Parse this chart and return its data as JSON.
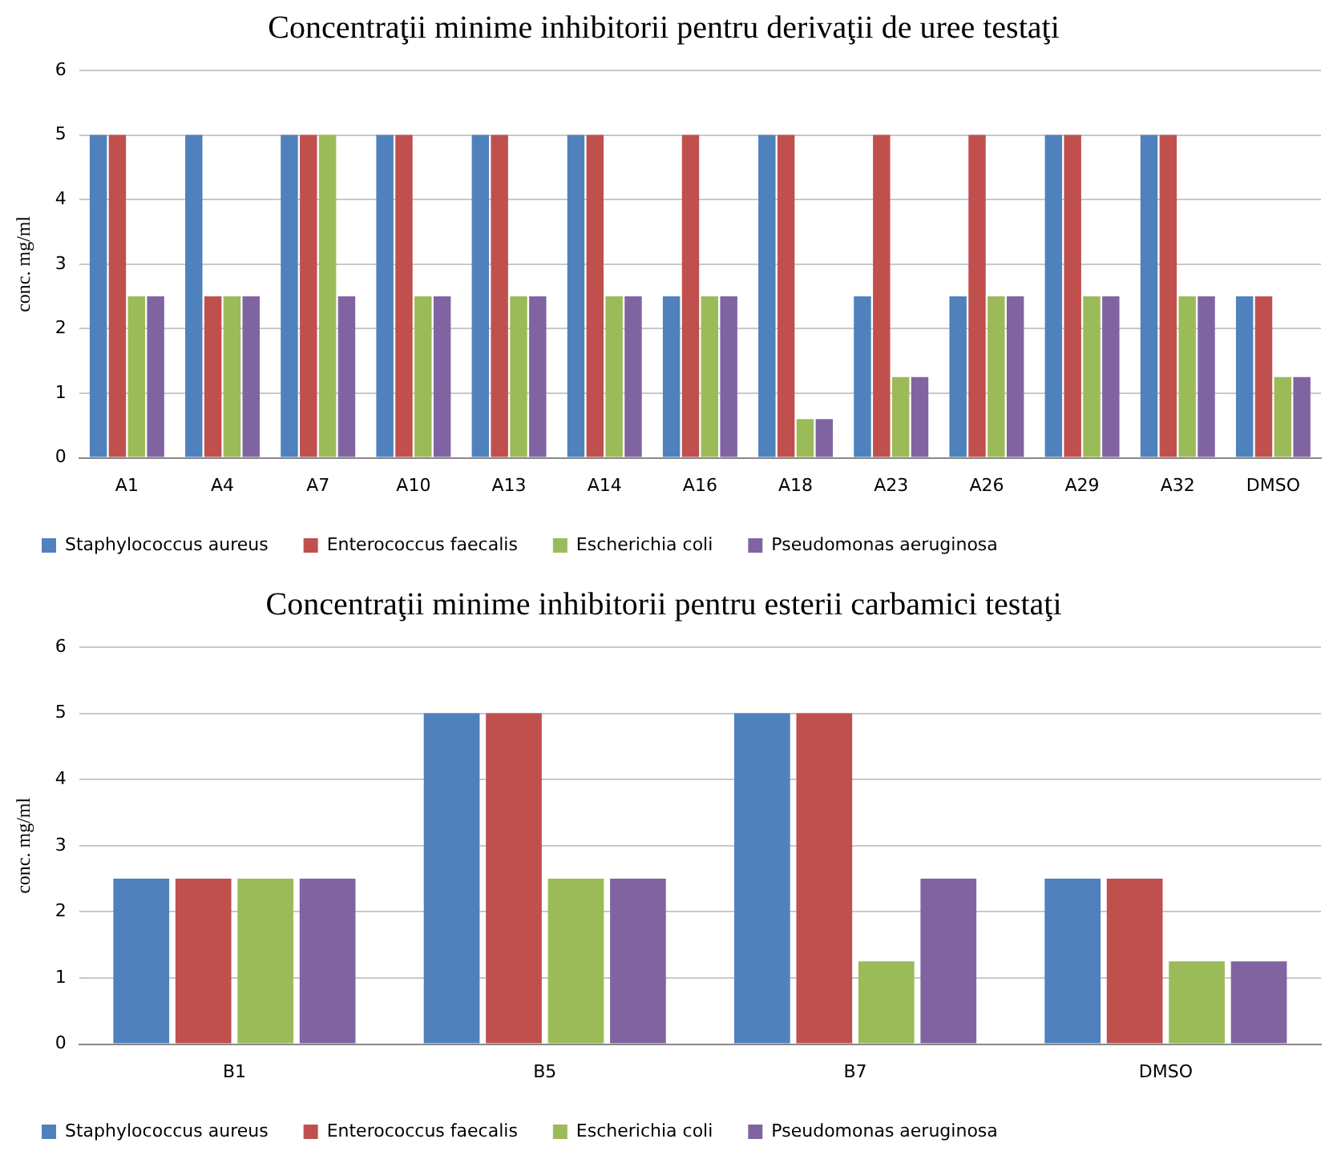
{
  "chart_data": [
    {
      "type": "bar",
      "title": "Concentraţii minime inhibitorii pentru derivaţii de uree testaţi",
      "ylabel": "conc. mg/ml",
      "categories": [
        "A1",
        "A4",
        "A7",
        "A10",
        "A13",
        "A14",
        "A16",
        "A18",
        "A23",
        "A26",
        "A29",
        "A32",
        "DMSO"
      ],
      "series": [
        {
          "name": "Staphylococcus aureus",
          "color": "#4f81bd",
          "values": [
            5,
            5,
            5,
            5,
            5,
            5,
            2.5,
            5,
            2.5,
            2.5,
            5,
            5,
            2.5
          ]
        },
        {
          "name": "Enterococcus faecalis",
          "color": "#c0504d",
          "values": [
            5,
            2.5,
            5,
            5,
            5,
            5,
            5,
            5,
            5,
            5,
            5,
            5,
            2.5
          ]
        },
        {
          "name": "Escherichia coli",
          "color": "#9bbb59",
          "values": [
            2.5,
            2.5,
            5,
            2.5,
            2.5,
            2.5,
            2.5,
            0.6,
            1.25,
            2.5,
            2.5,
            2.5,
            1.25
          ]
        },
        {
          "name": "Pseudomonas aeruginosa",
          "color": "#8064a2",
          "values": [
            2.5,
            2.5,
            2.5,
            2.5,
            2.5,
            2.5,
            2.5,
            0.6,
            1.25,
            2.5,
            2.5,
            2.5,
            1.25
          ]
        }
      ],
      "ylim": [
        0,
        6
      ],
      "yticks": [
        0,
        1,
        2,
        3,
        4,
        5,
        6
      ],
      "grid": "y",
      "legend": "bottom"
    },
    {
      "type": "bar",
      "title": "Concentraţii minime inhibitorii pentru esterii carbamici testaţi",
      "ylabel": "conc. mg/ml",
      "categories": [
        "B1",
        "B5",
        "B7",
        "DMSO"
      ],
      "series": [
        {
          "name": "Staphylococcus aureus",
          "color": "#4f81bd",
          "values": [
            2.5,
            5,
            5,
            2.5
          ]
        },
        {
          "name": "Enterococcus faecalis",
          "color": "#c0504d",
          "values": [
            2.5,
            5,
            5,
            2.5
          ]
        },
        {
          "name": "Escherichia coli",
          "color": "#9bbb59",
          "values": [
            2.5,
            2.5,
            1.25,
            1.25
          ]
        },
        {
          "name": "Pseudomonas aeruginosa",
          "color": "#8064a2",
          "values": [
            2.5,
            2.5,
            2.5,
            1.25
          ]
        }
      ],
      "ylim": [
        0,
        6
      ],
      "yticks": [
        0,
        1,
        2,
        3,
        4,
        5,
        6
      ],
      "grid": "y",
      "legend": "bottom"
    }
  ]
}
